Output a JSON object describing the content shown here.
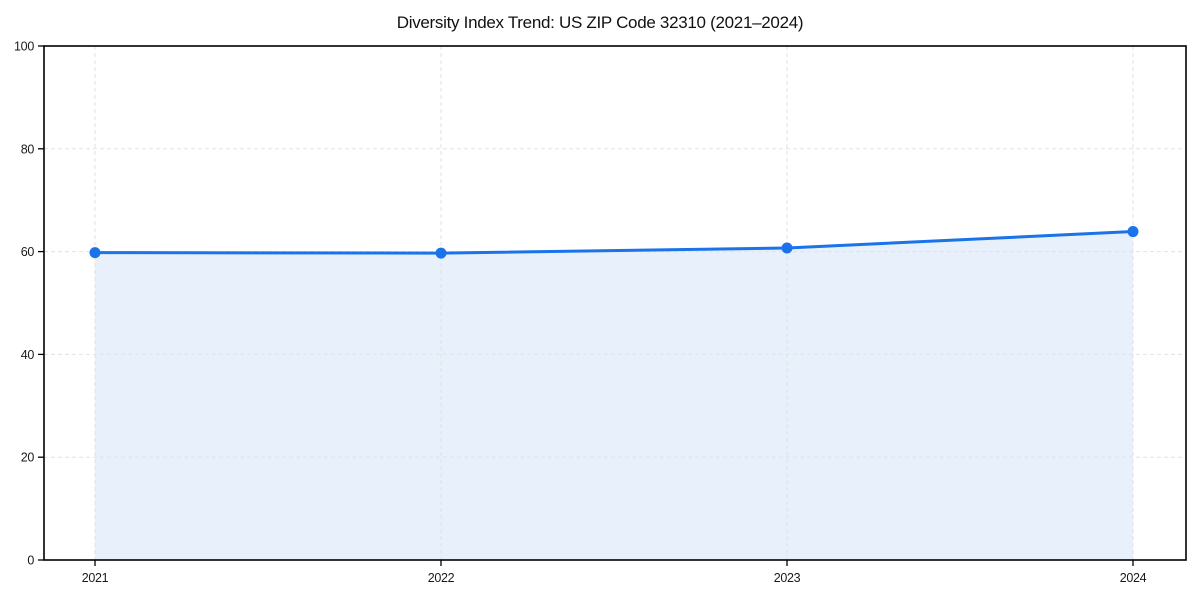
{
  "chart_data": {
    "type": "area",
    "title": "Diversity Index Trend: US ZIP Code 32310 (2021–2024)",
    "x": [
      "2021",
      "2022",
      "2023",
      "2024"
    ],
    "series": [
      {
        "name": "Diversity Index",
        "values": [
          59.8,
          59.7,
          60.7,
          63.9
        ]
      }
    ],
    "xlabel": "",
    "ylabel": "",
    "ylim": [
      0,
      100
    ],
    "yticks": [
      0,
      20,
      40,
      60,
      80,
      100
    ],
    "grid": true,
    "grid_style": "dashed",
    "legend": false,
    "line_color": "#1a73e8",
    "fill_color": "#e8f0fc",
    "grid_color": "#e2e2e2",
    "axis_color": "#000000",
    "marker": "circle"
  }
}
